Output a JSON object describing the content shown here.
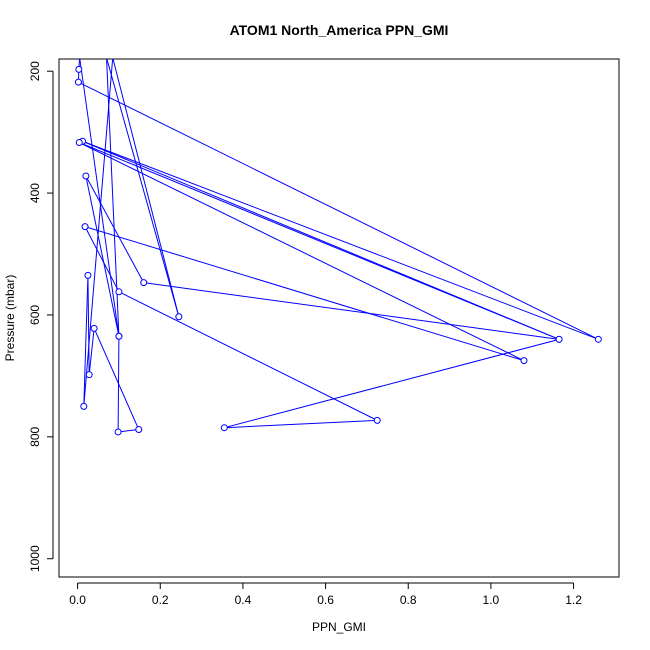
{
  "chart_data": {
    "type": "line",
    "title": "ATOM1 North_America PPN_GMI",
    "xlabel": "PPN_GMI",
    "ylabel": "Pressure (mbar)",
    "xlim": [
      -0.045,
      1.31
    ],
    "ylim": [
      1030,
      180
    ],
    "y_reversed": true,
    "x_ticks": [
      0.0,
      0.2,
      0.4,
      0.6,
      0.8,
      1.0,
      1.2
    ],
    "x_tick_labels": [
      "0.0",
      "0.2",
      "0.4",
      "0.6",
      "0.8",
      "1.0",
      "1.2"
    ],
    "y_ticks": [
      200,
      400,
      600,
      800,
      1000
    ],
    "y_tick_labels": [
      "200",
      "400",
      "600",
      "800",
      "1000"
    ],
    "series_color": "#0000ff",
    "series": [
      {
        "points": [
          [
            0.005,
            178
          ],
          [
            0.003,
            197
          ],
          [
            0.002,
            218
          ],
          [
            1.26,
            640
          ],
          [
            0.012,
            315
          ],
          [
            1.165,
            640
          ],
          [
            0.004,
            317
          ],
          [
            1.08,
            675
          ],
          [
            0.018,
            455
          ],
          [
            0.1,
            562
          ],
          [
            0.725,
            773
          ],
          [
            0.355,
            785
          ],
          [
            1.165,
            640
          ],
          [
            0.16,
            547
          ],
          [
            0.02,
            372
          ],
          [
            0.1,
            635
          ],
          [
            0.07,
            178
          ],
          [
            0.245,
            603
          ],
          [
            0.085,
            178
          ],
          [
            0.015,
            750
          ],
          [
            0.025,
            535
          ],
          [
            0.028,
            698
          ],
          [
            0.04,
            622
          ],
          [
            0.148,
            788
          ],
          [
            0.098,
            792
          ],
          [
            0.1,
            635
          ],
          [
            0.005,
            178
          ]
        ]
      }
    ]
  }
}
